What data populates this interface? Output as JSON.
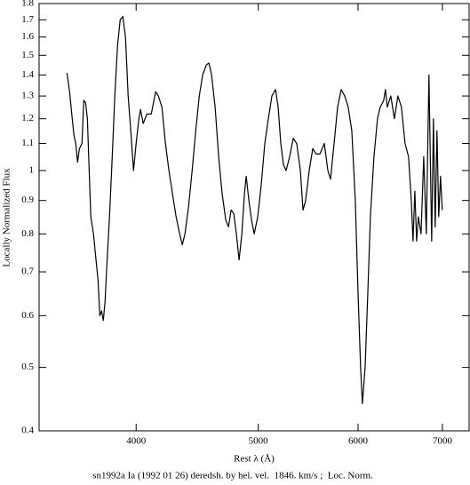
{
  "chart_data": {
    "type": "line",
    "title": "sn1992a Ia (1992 01 26) deredsh. by hel. vel.  1846. km/s ;  Loc. Norm.",
    "x_label": "Rest λ (Å)",
    "y_label": "Locally Normalized Flux",
    "x_log": true,
    "y_log": true,
    "color": "#000000",
    "xlim": [
      3350,
      7350
    ],
    "xticks": [
      4000,
      5000,
      6000,
      7000
    ],
    "ylim": [
      0.4,
      1.8
    ],
    "yticks": [
      0.4,
      0.5,
      0.6,
      0.7,
      0.8,
      0.9,
      1,
      1.1,
      1.2,
      1.3,
      1.4,
      1.5,
      1.6,
      1.7,
      1.8
    ],
    "x": [
      3525,
      3542,
      3559,
      3571,
      3582,
      3594,
      3606,
      3623,
      3635,
      3647,
      3659,
      3671,
      3682,
      3700,
      3712,
      3731,
      3743,
      3755,
      3767,
      3779,
      3792,
      3810,
      3829,
      3847,
      3866,
      3885,
      3904,
      3923,
      3942,
      3961,
      3981,
      4000,
      4020,
      4032,
      4052,
      4079,
      4112,
      4145,
      4166,
      4193,
      4220,
      4247,
      4275,
      4303,
      4331,
      4352,
      4373,
      4402,
      4431,
      4460,
      4489,
      4517,
      4547,
      4569,
      4591,
      4621,
      4651,
      4681,
      4712,
      4735,
      4758,
      4781,
      4804,
      4828,
      4852,
      4875,
      4891,
      4915,
      4939,
      4963,
      4995,
      5027,
      5060,
      5093,
      5126,
      5160,
      5185,
      5210,
      5236,
      5261,
      5295,
      5330,
      5364,
      5400,
      5426,
      5452,
      5488,
      5523,
      5559,
      5596,
      5641,
      5678,
      5706,
      5743,
      5780,
      5818,
      5856,
      5893,
      5932,
      5970,
      6000,
      6028,
      6048,
      6078,
      6108,
      6137,
      6177,
      6217,
      6248,
      6288,
      6308,
      6329,
      6370,
      6412,
      6453,
      6495,
      6538,
      6580,
      6613,
      6634,
      6656,
      6678,
      6699,
      6732,
      6765,
      6797,
      6830,
      6864,
      6886,
      6908,
      6931,
      6953,
      6976,
      6998
    ],
    "values": [
      1.41,
      1.32,
      1.2,
      1.13,
      1.1,
      1.03,
      1.08,
      1.1,
      1.28,
      1.27,
      1.2,
      1.0,
      0.85,
      0.8,
      0.75,
      0.68,
      0.6,
      0.61,
      0.59,
      0.63,
      0.72,
      0.85,
      1.05,
      1.3,
      1.55,
      1.7,
      1.72,
      1.6,
      1.3,
      1.15,
      1.0,
      1.1,
      1.2,
      1.24,
      1.18,
      1.22,
      1.22,
      1.32,
      1.3,
      1.25,
      1.1,
      1.0,
      0.92,
      0.85,
      0.8,
      0.77,
      0.8,
      0.88,
      1.0,
      1.15,
      1.3,
      1.4,
      1.45,
      1.46,
      1.4,
      1.25,
      1.05,
      0.92,
      0.84,
      0.82,
      0.87,
      0.86,
      0.8,
      0.73,
      0.8,
      0.92,
      0.98,
      0.9,
      0.84,
      0.8,
      0.85,
      0.95,
      1.1,
      1.2,
      1.3,
      1.33,
      1.25,
      1.1,
      1.02,
      1.0,
      1.05,
      1.12,
      1.1,
      1.0,
      0.87,
      0.9,
      1.0,
      1.08,
      1.06,
      1.06,
      1.1,
      1.0,
      0.97,
      1.1,
      1.25,
      1.33,
      1.3,
      1.25,
      1.15,
      0.9,
      0.65,
      0.5,
      0.44,
      0.5,
      0.65,
      0.85,
      1.05,
      1.2,
      1.25,
      1.28,
      1.33,
      1.25,
      1.3,
      1.2,
      1.3,
      1.25,
      1.1,
      1.05,
      0.9,
      0.78,
      0.93,
      0.78,
      0.85,
      0.8,
      1.05,
      0.8,
      1.4,
      0.78,
      1.2,
      0.82,
      1.15,
      0.85,
      0.98,
      0.87
    ]
  }
}
